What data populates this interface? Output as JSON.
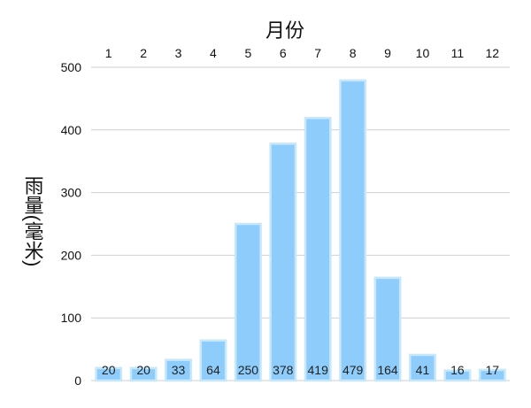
{
  "chart_data": {
    "type": "bar",
    "xlabel": "月份",
    "ylabel": "雨量(毫米)",
    "categories": [
      "1",
      "2",
      "3",
      "4",
      "5",
      "6",
      "7",
      "8",
      "9",
      "10",
      "11",
      "12"
    ],
    "values": [
      20,
      20,
      33,
      64,
      250,
      378,
      419,
      479,
      164,
      41,
      16,
      17
    ],
    "y_ticks": [
      "0",
      "100",
      "200",
      "300",
      "400",
      "500"
    ],
    "ylim": [
      0,
      500
    ],
    "x_axis_position": "top",
    "grid": true,
    "legend": "none",
    "bar_color": "#8ecdfb",
    "bar_edge_color": "#c7e7fb"
  }
}
